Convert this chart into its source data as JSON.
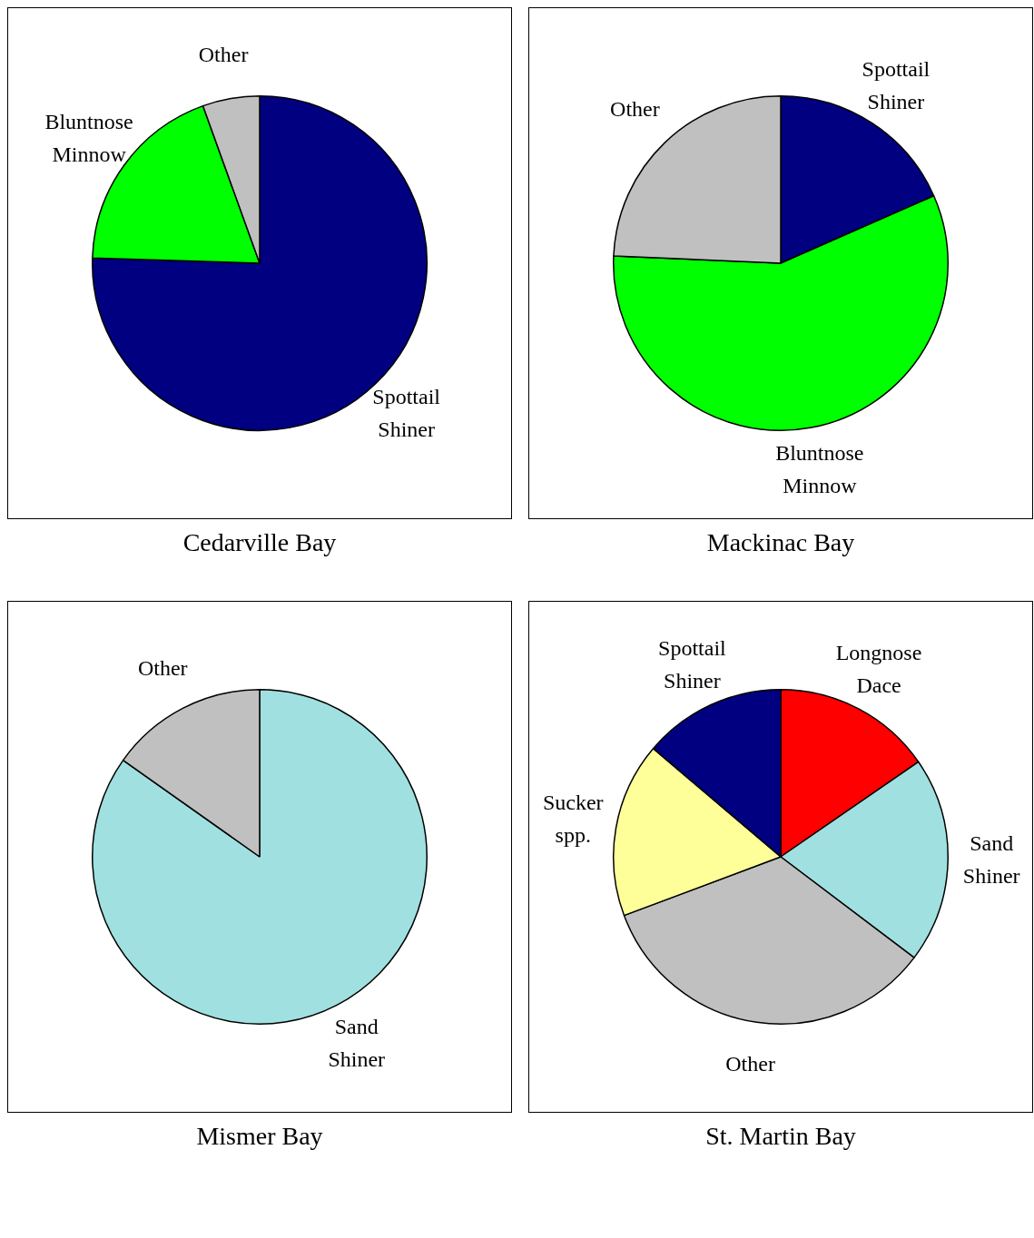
{
  "chart_data": [
    {
      "type": "pie",
      "title": "Cedarville Bay",
      "categories": [
        "Spottail Shiner",
        "Bluntnose Minnow",
        "Other"
      ],
      "values": [
        75.5,
        19,
        5.5
      ],
      "colors": [
        "#000080",
        "#00ff00",
        "#c0c0c0"
      ],
      "legend": false
    },
    {
      "type": "pie",
      "title": "Mackinac Bay",
      "categories": [
        "Spottail Shiner",
        "Bluntnose Minnow",
        "Other"
      ],
      "values": [
        18.4,
        57.3,
        24.3
      ],
      "colors": [
        "#000080",
        "#00ff00",
        "#c0c0c0"
      ],
      "legend": false
    },
    {
      "type": "pie",
      "title": "Mismer Bay",
      "categories": [
        "Sand Shiner",
        "Other"
      ],
      "values": [
        84.8,
        15.2
      ],
      "colors": [
        "#a0e0e0",
        "#c0c0c0"
      ],
      "legend": false
    },
    {
      "type": "pie",
      "title": "St. Martin Bay",
      "categories": [
        "Longnose Dace",
        "Sand Shiner",
        "Other",
        "Sucker spp.",
        "Spottail Shiner"
      ],
      "values": [
        15.4,
        19.9,
        34,
        16.9,
        13.8
      ],
      "colors": [
        "#ff0000",
        "#a0e0e0",
        "#c0c0c0",
        "#ffff99",
        "#000080"
      ],
      "legend": false
    }
  ]
}
